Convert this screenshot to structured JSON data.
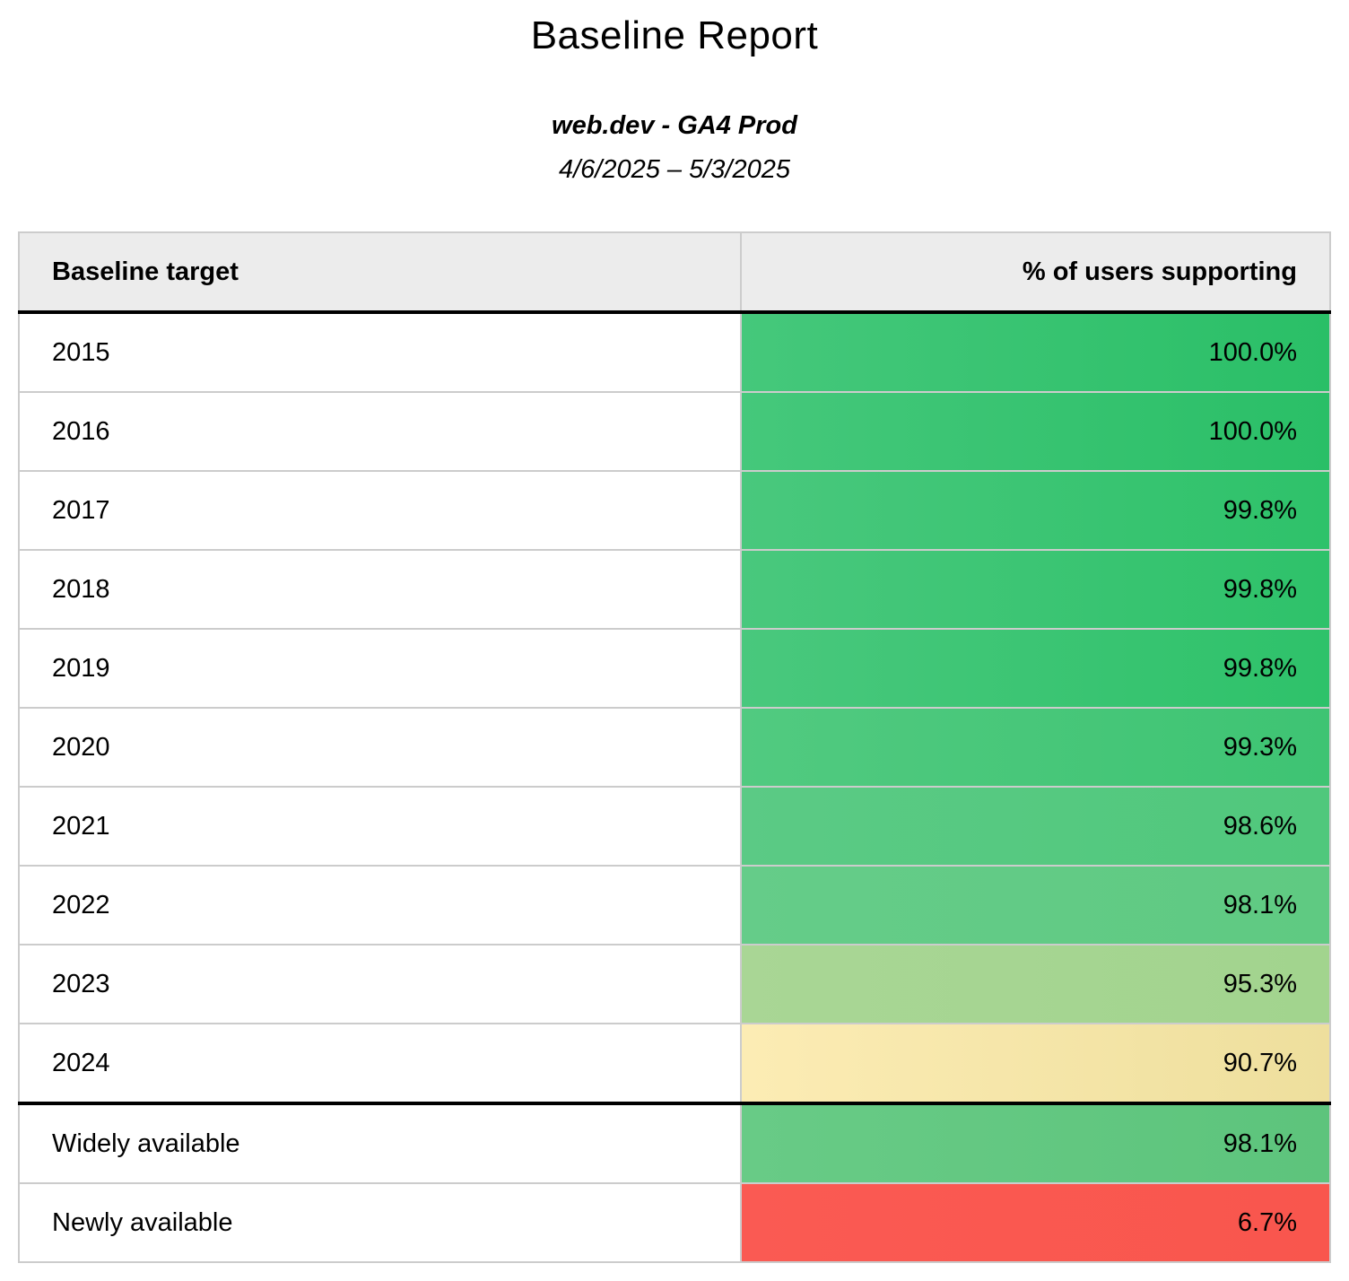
{
  "page": {
    "title": "Baseline Report",
    "subtitle": "web.dev - GA4 Prod",
    "date_range": "4/6/2025 – 5/3/2025"
  },
  "colors": {
    "header_background": "#ececec",
    "grid_border": "#cccccc",
    "section_border": "#000000"
  },
  "table": {
    "columns": [
      {
        "label": "Baseline target"
      },
      {
        "label": "% of users supporting"
      }
    ],
    "rows": [
      {
        "target": "2015",
        "value": "100.0%",
        "color_left": "#45c87b",
        "color_right": "#2abf67",
        "section_break": false
      },
      {
        "target": "2016",
        "value": "100.0%",
        "color_left": "#45c87b",
        "color_right": "#2abf67",
        "section_break": false
      },
      {
        "target": "2017",
        "value": "99.8%",
        "color_left": "#49c87d",
        "color_right": "#2ec26a",
        "section_break": false
      },
      {
        "target": "2018",
        "value": "99.8%",
        "color_left": "#49c87d",
        "color_right": "#2ec26a",
        "section_break": false
      },
      {
        "target": "2019",
        "value": "99.8%",
        "color_left": "#49c87d",
        "color_right": "#2ec26a",
        "section_break": false
      },
      {
        "target": "2020",
        "value": "99.3%",
        "color_left": "#51ca80",
        "color_right": "#3ec473",
        "section_break": false
      },
      {
        "target": "2021",
        "value": "98.6%",
        "color_left": "#5bca85",
        "color_right": "#50c87c",
        "section_break": false
      },
      {
        "target": "2022",
        "value": "98.1%",
        "color_left": "#65cc89",
        "color_right": "#5fca82",
        "section_break": false
      },
      {
        "target": "2023",
        "value": "95.3%",
        "color_left": "#a9d695",
        "color_right": "#a2d48e",
        "section_break": false
      },
      {
        "target": "2024",
        "value": "90.7%",
        "color_left": "#fcecb4",
        "color_right": "#eedf9d",
        "section_break": false
      },
      {
        "target": "Widely available",
        "value": "98.1%",
        "color_left": "#68cb86",
        "color_right": "#5dc47c",
        "section_break": true
      },
      {
        "target": "Newly available",
        "value": "6.7%",
        "color_left": "#fa5a53",
        "color_right": "#f9564d",
        "section_break": false
      }
    ]
  },
  "chart_data": {
    "type": "table",
    "title": "Baseline Report",
    "subtitle": "web.dev - GA4 Prod",
    "date_range": "4/6/2025 – 5/3/2025",
    "columns": [
      "Baseline target",
      "% of users supporting"
    ],
    "categories": [
      "2015",
      "2016",
      "2017",
      "2018",
      "2019",
      "2020",
      "2021",
      "2022",
      "2023",
      "2024",
      "Widely available",
      "Newly available"
    ],
    "values": [
      100.0,
      100.0,
      99.8,
      99.8,
      99.8,
      99.3,
      98.6,
      98.1,
      95.3,
      90.7,
      98.1,
      6.7
    ],
    "value_unit": "%",
    "layout_hints": {
      "value_cell_coloring": "green-to-red heatmap by percentage",
      "section_break_before": "Widely available",
      "value_alignment": "right"
    }
  }
}
